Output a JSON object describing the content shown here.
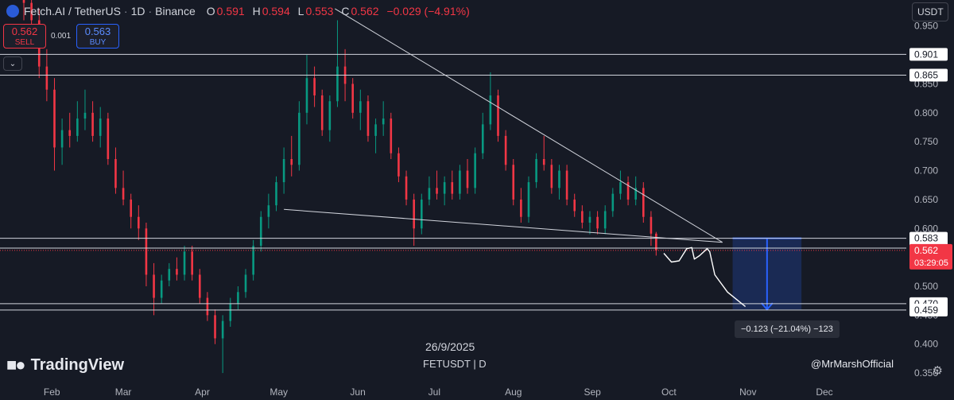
{
  "header": {
    "symbol": "Fetch.AI / TetherUS",
    "interval": "1D",
    "exchange": "Binance",
    "open_label": "O",
    "open": "0.591",
    "high_label": "H",
    "high": "0.594",
    "low_label": "L",
    "low": "0.553",
    "close_label": "C",
    "close": "0.562",
    "change": "−0.029 (−4.91%)"
  },
  "trade": {
    "sell_price": "0.562",
    "sell_label": "SELL",
    "spread": "0.001",
    "buy_price": "0.563",
    "buy_label": "BUY"
  },
  "currency_button": "USDT",
  "watermark": {
    "date": "26/9/2025",
    "symbol_line": "FETUSDT | D",
    "brand": "TradingView",
    "author": "@MrMarshOfficial"
  },
  "measure_label": "−0.123 (−21.04%) −123",
  "colors": {
    "background": "#161a25",
    "up": "#089981",
    "down": "#f23645",
    "line": "#d1d4dc",
    "measure": "#2962ff"
  },
  "chart_data": {
    "type": "candlestick",
    "y_axis": {
      "ticks": [
        "0.950",
        "0.900",
        "0.850",
        "0.800",
        "0.750",
        "0.700",
        "0.650",
        "0.600",
        "0.550",
        "0.500",
        "0.450",
        "0.400",
        "0.350"
      ],
      "tick_values": [
        0.95,
        0.9,
        0.85,
        0.8,
        0.75,
        0.7,
        0.65,
        0.6,
        0.55,
        0.5,
        0.45,
        0.4,
        0.35
      ],
      "range": [
        0.335,
        0.995
      ]
    },
    "x_axis": {
      "labels": [
        "Feb",
        "Mar",
        "Apr",
        "May",
        "Jun",
        "Jul",
        "Aug",
        "Sep",
        "Oct",
        "Nov",
        "Dec"
      ],
      "dates": [
        "2025-02-01",
        "2025-03-01",
        "2025-04-01",
        "2025-05-01",
        "2025-06-01",
        "2025-07-01",
        "2025-08-01",
        "2025-09-01",
        "2025-10-01",
        "2025-11-01",
        "2025-12-01"
      ],
      "range": [
        "2025-01-21",
        "2025-12-30"
      ]
    },
    "horizontal_levels": [
      {
        "value": 0.901,
        "label": "0.901"
      },
      {
        "value": 0.865,
        "label": "0.865"
      },
      {
        "value": 0.583,
        "label": "0.583"
      },
      {
        "value": 0.566,
        "label": "0.566"
      },
      {
        "value": 0.47,
        "label": "0.470"
      },
      {
        "value": 0.459,
        "label": "0.459"
      }
    ],
    "last_price": {
      "value": 0.562,
      "label": "0.562",
      "countdown": "03:29:05"
    },
    "trendlines": [
      {
        "from": [
          "2025-05-23",
          0.98
        ],
        "to": [
          "2025-10-22",
          0.576
        ]
      },
      {
        "from": [
          "2025-05-03",
          0.633
        ],
        "to": [
          "2025-10-22",
          0.576
        ]
      }
    ],
    "projection_path": [
      [
        "2025-09-29",
        0.557
      ],
      [
        "2025-10-02",
        0.542
      ],
      [
        "2025-10-05",
        0.544
      ],
      [
        "2025-10-08",
        0.565
      ],
      [
        "2025-10-10",
        0.567
      ],
      [
        "2025-10-11",
        0.547
      ],
      [
        "2025-10-13",
        0.553
      ],
      [
        "2025-10-16",
        0.565
      ],
      [
        "2025-10-17",
        0.56
      ],
      [
        "2025-10-19",
        0.52
      ],
      [
        "2025-10-24",
        0.49
      ],
      [
        "2025-10-31",
        0.465
      ]
    ],
    "measure_box": {
      "x_start": "2025-10-26",
      "x_end": "2025-11-22",
      "top": 0.583,
      "bottom": 0.46
    },
    "candles": [
      {
        "d": "2025-01-21",
        "o": 1.02,
        "h": 1.1,
        "l": 0.96,
        "c": 0.99
      },
      {
        "d": "2025-01-24",
        "o": 0.99,
        "h": 1.05,
        "l": 0.94,
        "c": 0.96
      },
      {
        "d": "2025-01-27",
        "o": 0.96,
        "h": 0.98,
        "l": 0.86,
        "c": 0.88
      },
      {
        "d": "2025-01-30",
        "o": 0.88,
        "h": 0.91,
        "l": 0.82,
        "c": 0.84
      },
      {
        "d": "2025-02-02",
        "o": 0.84,
        "h": 0.86,
        "l": 0.7,
        "c": 0.74
      },
      {
        "d": "2025-02-05",
        "o": 0.74,
        "h": 0.79,
        "l": 0.71,
        "c": 0.77
      },
      {
        "d": "2025-02-08",
        "o": 0.77,
        "h": 0.8,
        "l": 0.74,
        "c": 0.76
      },
      {
        "d": "2025-02-11",
        "o": 0.76,
        "h": 0.82,
        "l": 0.75,
        "c": 0.79
      },
      {
        "d": "2025-02-14",
        "o": 0.79,
        "h": 0.84,
        "l": 0.77,
        "c": 0.8
      },
      {
        "d": "2025-02-17",
        "o": 0.8,
        "h": 0.82,
        "l": 0.75,
        "c": 0.76
      },
      {
        "d": "2025-02-20",
        "o": 0.76,
        "h": 0.81,
        "l": 0.74,
        "c": 0.79
      },
      {
        "d": "2025-02-23",
        "o": 0.79,
        "h": 0.8,
        "l": 0.71,
        "c": 0.72
      },
      {
        "d": "2025-02-26",
        "o": 0.72,
        "h": 0.74,
        "l": 0.66,
        "c": 0.67
      },
      {
        "d": "2025-03-01",
        "o": 0.67,
        "h": 0.7,
        "l": 0.64,
        "c": 0.65
      },
      {
        "d": "2025-03-04",
        "o": 0.65,
        "h": 0.66,
        "l": 0.6,
        "c": 0.62
      },
      {
        "d": "2025-03-07",
        "o": 0.62,
        "h": 0.64,
        "l": 0.58,
        "c": 0.6
      },
      {
        "d": "2025-03-10",
        "o": 0.6,
        "h": 0.61,
        "l": 0.5,
        "c": 0.52
      },
      {
        "d": "2025-03-13",
        "o": 0.52,
        "h": 0.54,
        "l": 0.45,
        "c": 0.48
      },
      {
        "d": "2025-03-16",
        "o": 0.48,
        "h": 0.52,
        "l": 0.47,
        "c": 0.51
      },
      {
        "d": "2025-03-19",
        "o": 0.51,
        "h": 0.54,
        "l": 0.5,
        "c": 0.53
      },
      {
        "d": "2025-03-22",
        "o": 0.53,
        "h": 0.55,
        "l": 0.51,
        "c": 0.52
      },
      {
        "d": "2025-03-25",
        "o": 0.52,
        "h": 0.57,
        "l": 0.51,
        "c": 0.56
      },
      {
        "d": "2025-03-28",
        "o": 0.56,
        "h": 0.57,
        "l": 0.51,
        "c": 0.52
      },
      {
        "d": "2025-03-31",
        "o": 0.52,
        "h": 0.53,
        "l": 0.47,
        "c": 0.48
      },
      {
        "d": "2025-04-03",
        "o": 0.48,
        "h": 0.49,
        "l": 0.44,
        "c": 0.45
      },
      {
        "d": "2025-04-06",
        "o": 0.45,
        "h": 0.46,
        "l": 0.4,
        "c": 0.41
      },
      {
        "d": "2025-04-09",
        "o": 0.41,
        "h": 0.45,
        "l": 0.35,
        "c": 0.44
      },
      {
        "d": "2025-04-12",
        "o": 0.44,
        "h": 0.48,
        "l": 0.43,
        "c": 0.47
      },
      {
        "d": "2025-04-15",
        "o": 0.47,
        "h": 0.5,
        "l": 0.46,
        "c": 0.49
      },
      {
        "d": "2025-04-18",
        "o": 0.49,
        "h": 0.53,
        "l": 0.48,
        "c": 0.52
      },
      {
        "d": "2025-04-21",
        "o": 0.52,
        "h": 0.58,
        "l": 0.51,
        "c": 0.57
      },
      {
        "d": "2025-04-24",
        "o": 0.57,
        "h": 0.63,
        "l": 0.56,
        "c": 0.62
      },
      {
        "d": "2025-04-27",
        "o": 0.62,
        "h": 0.66,
        "l": 0.6,
        "c": 0.64
      },
      {
        "d": "2025-04-30",
        "o": 0.64,
        "h": 0.69,
        "l": 0.63,
        "c": 0.68
      },
      {
        "d": "2025-05-03",
        "o": 0.68,
        "h": 0.74,
        "l": 0.66,
        "c": 0.72
      },
      {
        "d": "2025-05-06",
        "o": 0.72,
        "h": 0.76,
        "l": 0.69,
        "c": 0.71
      },
      {
        "d": "2025-05-09",
        "o": 0.71,
        "h": 0.82,
        "l": 0.7,
        "c": 0.8
      },
      {
        "d": "2025-05-12",
        "o": 0.8,
        "h": 0.9,
        "l": 0.78,
        "c": 0.86
      },
      {
        "d": "2025-05-15",
        "o": 0.86,
        "h": 0.88,
        "l": 0.81,
        "c": 0.83
      },
      {
        "d": "2025-05-18",
        "o": 0.83,
        "h": 0.84,
        "l": 0.76,
        "c": 0.77
      },
      {
        "d": "2025-05-21",
        "o": 0.77,
        "h": 0.83,
        "l": 0.75,
        "c": 0.82
      },
      {
        "d": "2025-05-24",
        "o": 0.82,
        "h": 0.96,
        "l": 0.81,
        "c": 0.88
      },
      {
        "d": "2025-05-27",
        "o": 0.88,
        "h": 0.91,
        "l": 0.82,
        "c": 0.85
      },
      {
        "d": "2025-05-30",
        "o": 0.85,
        "h": 0.86,
        "l": 0.79,
        "c": 0.8
      },
      {
        "d": "2025-06-02",
        "o": 0.8,
        "h": 0.84,
        "l": 0.77,
        "c": 0.82
      },
      {
        "d": "2025-06-05",
        "o": 0.82,
        "h": 0.83,
        "l": 0.75,
        "c": 0.76
      },
      {
        "d": "2025-06-08",
        "o": 0.76,
        "h": 0.79,
        "l": 0.73,
        "c": 0.78
      },
      {
        "d": "2025-06-11",
        "o": 0.78,
        "h": 0.82,
        "l": 0.76,
        "c": 0.79
      },
      {
        "d": "2025-06-14",
        "o": 0.79,
        "h": 0.8,
        "l": 0.72,
        "c": 0.73
      },
      {
        "d": "2025-06-17",
        "o": 0.73,
        "h": 0.74,
        "l": 0.68,
        "c": 0.69
      },
      {
        "d": "2025-06-20",
        "o": 0.69,
        "h": 0.7,
        "l": 0.64,
        "c": 0.65
      },
      {
        "d": "2025-06-23",
        "o": 0.65,
        "h": 0.66,
        "l": 0.57,
        "c": 0.6
      },
      {
        "d": "2025-06-26",
        "o": 0.6,
        "h": 0.66,
        "l": 0.59,
        "c": 0.65
      },
      {
        "d": "2025-06-29",
        "o": 0.65,
        "h": 0.69,
        "l": 0.64,
        "c": 0.67
      },
      {
        "d": "2025-07-02",
        "o": 0.67,
        "h": 0.7,
        "l": 0.65,
        "c": 0.66
      },
      {
        "d": "2025-07-05",
        "o": 0.66,
        "h": 0.69,
        "l": 0.64,
        "c": 0.68
      },
      {
        "d": "2025-07-08",
        "o": 0.68,
        "h": 0.7,
        "l": 0.65,
        "c": 0.66
      },
      {
        "d": "2025-07-11",
        "o": 0.66,
        "h": 0.71,
        "l": 0.65,
        "c": 0.7
      },
      {
        "d": "2025-07-14",
        "o": 0.7,
        "h": 0.72,
        "l": 0.66,
        "c": 0.67
      },
      {
        "d": "2025-07-17",
        "o": 0.67,
        "h": 0.74,
        "l": 0.66,
        "c": 0.73
      },
      {
        "d": "2025-07-20",
        "o": 0.73,
        "h": 0.8,
        "l": 0.72,
        "c": 0.78
      },
      {
        "d": "2025-07-23",
        "o": 0.78,
        "h": 0.87,
        "l": 0.77,
        "c": 0.83
      },
      {
        "d": "2025-07-26",
        "o": 0.83,
        "h": 0.84,
        "l": 0.75,
        "c": 0.76
      },
      {
        "d": "2025-07-29",
        "o": 0.76,
        "h": 0.77,
        "l": 0.7,
        "c": 0.71
      },
      {
        "d": "2025-08-01",
        "o": 0.71,
        "h": 0.72,
        "l": 0.64,
        "c": 0.65
      },
      {
        "d": "2025-08-04",
        "o": 0.65,
        "h": 0.67,
        "l": 0.61,
        "c": 0.62
      },
      {
        "d": "2025-08-07",
        "o": 0.62,
        "h": 0.69,
        "l": 0.61,
        "c": 0.68
      },
      {
        "d": "2025-08-10",
        "o": 0.68,
        "h": 0.73,
        "l": 0.67,
        "c": 0.72
      },
      {
        "d": "2025-08-13",
        "o": 0.72,
        "h": 0.76,
        "l": 0.7,
        "c": 0.71
      },
      {
        "d": "2025-08-16",
        "o": 0.71,
        "h": 0.72,
        "l": 0.66,
        "c": 0.67
      },
      {
        "d": "2025-08-19",
        "o": 0.67,
        "h": 0.71,
        "l": 0.65,
        "c": 0.7
      },
      {
        "d": "2025-08-22",
        "o": 0.7,
        "h": 0.71,
        "l": 0.64,
        "c": 0.65
      },
      {
        "d": "2025-08-25",
        "o": 0.65,
        "h": 0.66,
        "l": 0.62,
        "c": 0.63
      },
      {
        "d": "2025-08-28",
        "o": 0.63,
        "h": 0.64,
        "l": 0.6,
        "c": 0.61
      },
      {
        "d": "2025-08-31",
        "o": 0.61,
        "h": 0.63,
        "l": 0.59,
        "c": 0.62
      },
      {
        "d": "2025-09-03",
        "o": 0.62,
        "h": 0.63,
        "l": 0.59,
        "c": 0.6
      },
      {
        "d": "2025-09-06",
        "o": 0.6,
        "h": 0.64,
        "l": 0.59,
        "c": 0.63
      },
      {
        "d": "2025-09-09",
        "o": 0.63,
        "h": 0.67,
        "l": 0.62,
        "c": 0.66
      },
      {
        "d": "2025-09-12",
        "o": 0.66,
        "h": 0.7,
        "l": 0.65,
        "c": 0.68
      },
      {
        "d": "2025-09-15",
        "o": 0.68,
        "h": 0.69,
        "l": 0.64,
        "c": 0.65
      },
      {
        "d": "2025-09-18",
        "o": 0.65,
        "h": 0.69,
        "l": 0.64,
        "c": 0.67
      },
      {
        "d": "2025-09-21",
        "o": 0.67,
        "h": 0.68,
        "l": 0.61,
        "c": 0.62
      },
      {
        "d": "2025-09-24",
        "o": 0.62,
        "h": 0.63,
        "l": 0.57,
        "c": 0.591
      },
      {
        "d": "2025-09-26",
        "o": 0.591,
        "h": 0.594,
        "l": 0.553,
        "c": 0.562
      }
    ]
  }
}
